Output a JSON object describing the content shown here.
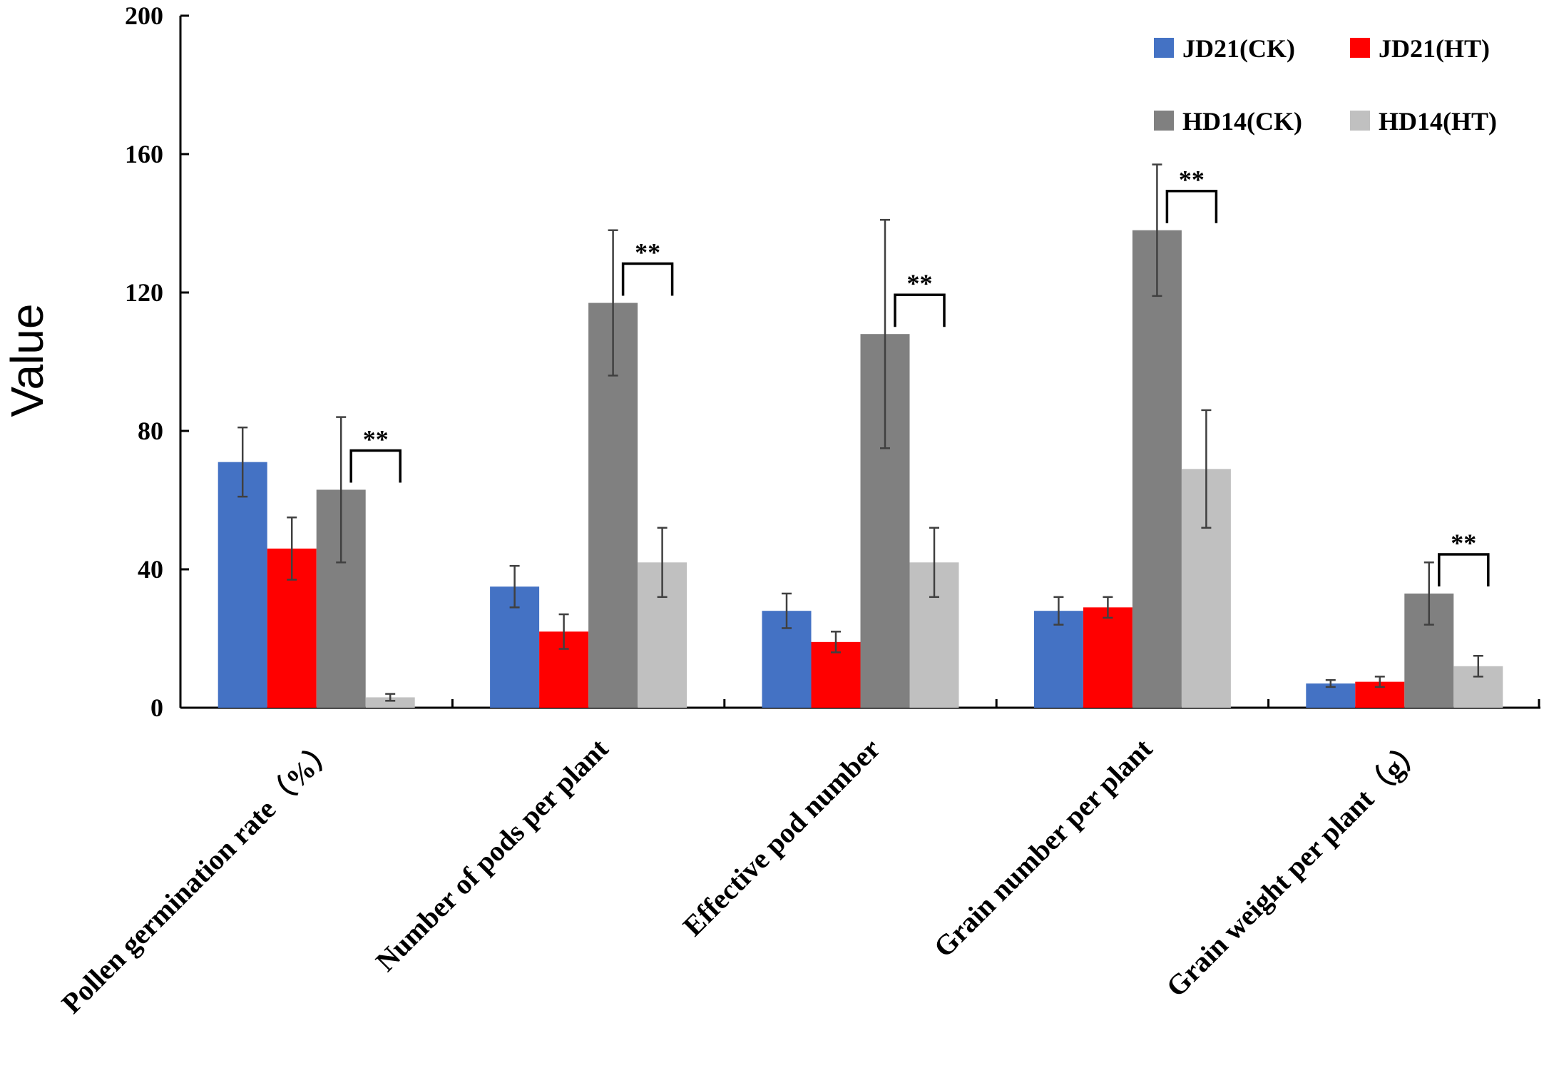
{
  "chart_data": {
    "type": "bar",
    "title": "",
    "xlabel": "",
    "ylabel": "Value",
    "ylim": [
      0,
      200
    ],
    "yticks": [
      "0",
      "40",
      "80",
      "120",
      "160",
      "200"
    ],
    "categories": [
      "Pollen germination rate（%）",
      "Number of pods per plant",
      "Effective pod number",
      "Grain number per plant",
      "Grain weight per plant（g）"
    ],
    "series": [
      {
        "name": "JD21(CK)",
        "color": "#4472C4",
        "values": [
          71,
          35,
          28,
          28,
          7
        ],
        "errors": [
          10,
          6,
          5,
          4,
          1
        ]
      },
      {
        "name": "JD21(HT)",
        "color": "#FF0000",
        "values": [
          46,
          22,
          19,
          29,
          7.5
        ],
        "errors": [
          9,
          5,
          3,
          3,
          1.5
        ]
      },
      {
        "name": "HD14(CK)",
        "color": "#808080",
        "values": [
          63,
          117,
          108,
          138,
          33
        ],
        "errors": [
          21,
          21,
          33,
          19,
          9
        ]
      },
      {
        "name": "HD14(HT)",
        "color": "#C0C0C0",
        "values": [
          3,
          42,
          42,
          69,
          12
        ],
        "errors": [
          1,
          10,
          10,
          17,
          3
        ]
      }
    ],
    "significance": [
      {
        "category_index": 0,
        "label": "**"
      },
      {
        "category_index": 1,
        "label": "**"
      },
      {
        "category_index": 2,
        "label": "**"
      },
      {
        "category_index": 3,
        "label": "**"
      },
      {
        "category_index": 4,
        "label": "**"
      }
    ],
    "legend": {
      "position": "top-right",
      "columns": 2
    }
  }
}
